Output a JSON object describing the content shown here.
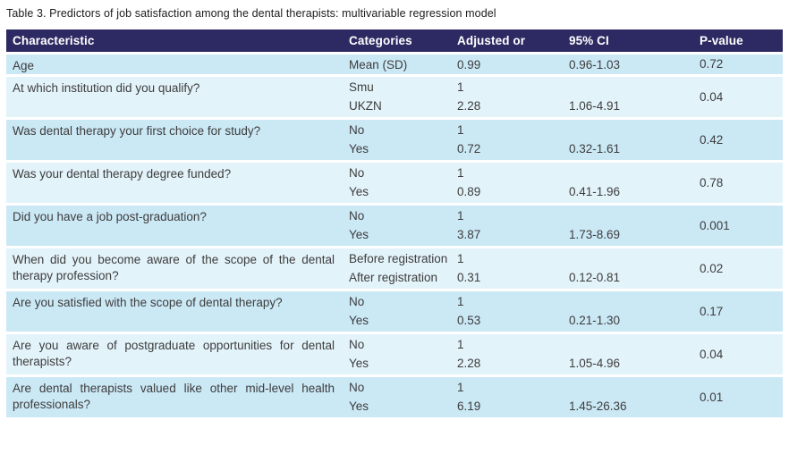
{
  "title": "Table 3. Predictors of job satisfaction among the dental therapists: multivariable regression model",
  "colors": {
    "header_bg": "#2d2a63",
    "row_dark": "#cbe8f5",
    "row_light": "#e3f3fa",
    "body_text": "#3d3d3d"
  },
  "table": {
    "columns": [
      "Characteristic",
      "Categories",
      "Adjusted or",
      "95% CI",
      "P-value"
    ],
    "groups": [
      {
        "characteristic": "Age",
        "p_value": "0.72",
        "rows": [
          {
            "category": "Mean (SD)",
            "adjusted_or": "0.99",
            "ci": "0.96-1.03"
          }
        ]
      },
      {
        "characteristic": "At which institution did you qualify?",
        "p_value": "0.04",
        "rows": [
          {
            "category": "Smu",
            "adjusted_or": "1",
            "ci": ""
          },
          {
            "category": "UKZN",
            "adjusted_or": "2.28",
            "ci": "1.06-4.91"
          }
        ]
      },
      {
        "characteristic": "Was dental therapy your first choice for study?",
        "p_value": "0.42",
        "rows": [
          {
            "category": "No",
            "adjusted_or": "1",
            "ci": ""
          },
          {
            "category": "Yes",
            "adjusted_or": "0.72",
            "ci": "0.32-1.61"
          }
        ]
      },
      {
        "characteristic": "Was your dental therapy degree funded?",
        "p_value": "0.78",
        "rows": [
          {
            "category": "No",
            "adjusted_or": "1",
            "ci": ""
          },
          {
            "category": "Yes",
            "adjusted_or": "0.89",
            "ci": "0.41-1.96"
          }
        ]
      },
      {
        "characteristic": "Did you have a job post-graduation?",
        "p_value": "0.001",
        "rows": [
          {
            "category": "No",
            "adjusted_or": "1",
            "ci": ""
          },
          {
            "category": "Yes",
            "adjusted_or": "3.87",
            "ci": "1.73-8.69"
          }
        ]
      },
      {
        "characteristic": "When did you become aware of the scope of the dental therapy profession?",
        "p_value": "0.02",
        "rows": [
          {
            "category": "Before registration",
            "adjusted_or": "1",
            "ci": ""
          },
          {
            "category": "After registration",
            "adjusted_or": "0.31",
            "ci": "0.12-0.81"
          }
        ]
      },
      {
        "characteristic": "Are you satisfied with the scope of dental therapy?",
        "p_value": "0.17",
        "rows": [
          {
            "category": "No",
            "adjusted_or": "1",
            "ci": ""
          },
          {
            "category": "Yes",
            "adjusted_or": "0.53",
            "ci": "0.21-1.30"
          }
        ]
      },
      {
        "characteristic": "Are you aware of postgraduate opportunities for dental therapists?",
        "p_value": "0.04",
        "rows": [
          {
            "category": "No",
            "adjusted_or": "1",
            "ci": ""
          },
          {
            "category": "Yes",
            "adjusted_or": "2.28",
            "ci": "1.05-4.96"
          }
        ]
      },
      {
        "characteristic": "Are dental therapists valued like other mid-level health professionals?",
        "p_value": "0.01",
        "rows": [
          {
            "category": "No",
            "adjusted_or": "1",
            "ci": ""
          },
          {
            "category": "Yes",
            "adjusted_or": "6.19",
            "ci": "1.45-26.36"
          }
        ]
      }
    ]
  }
}
